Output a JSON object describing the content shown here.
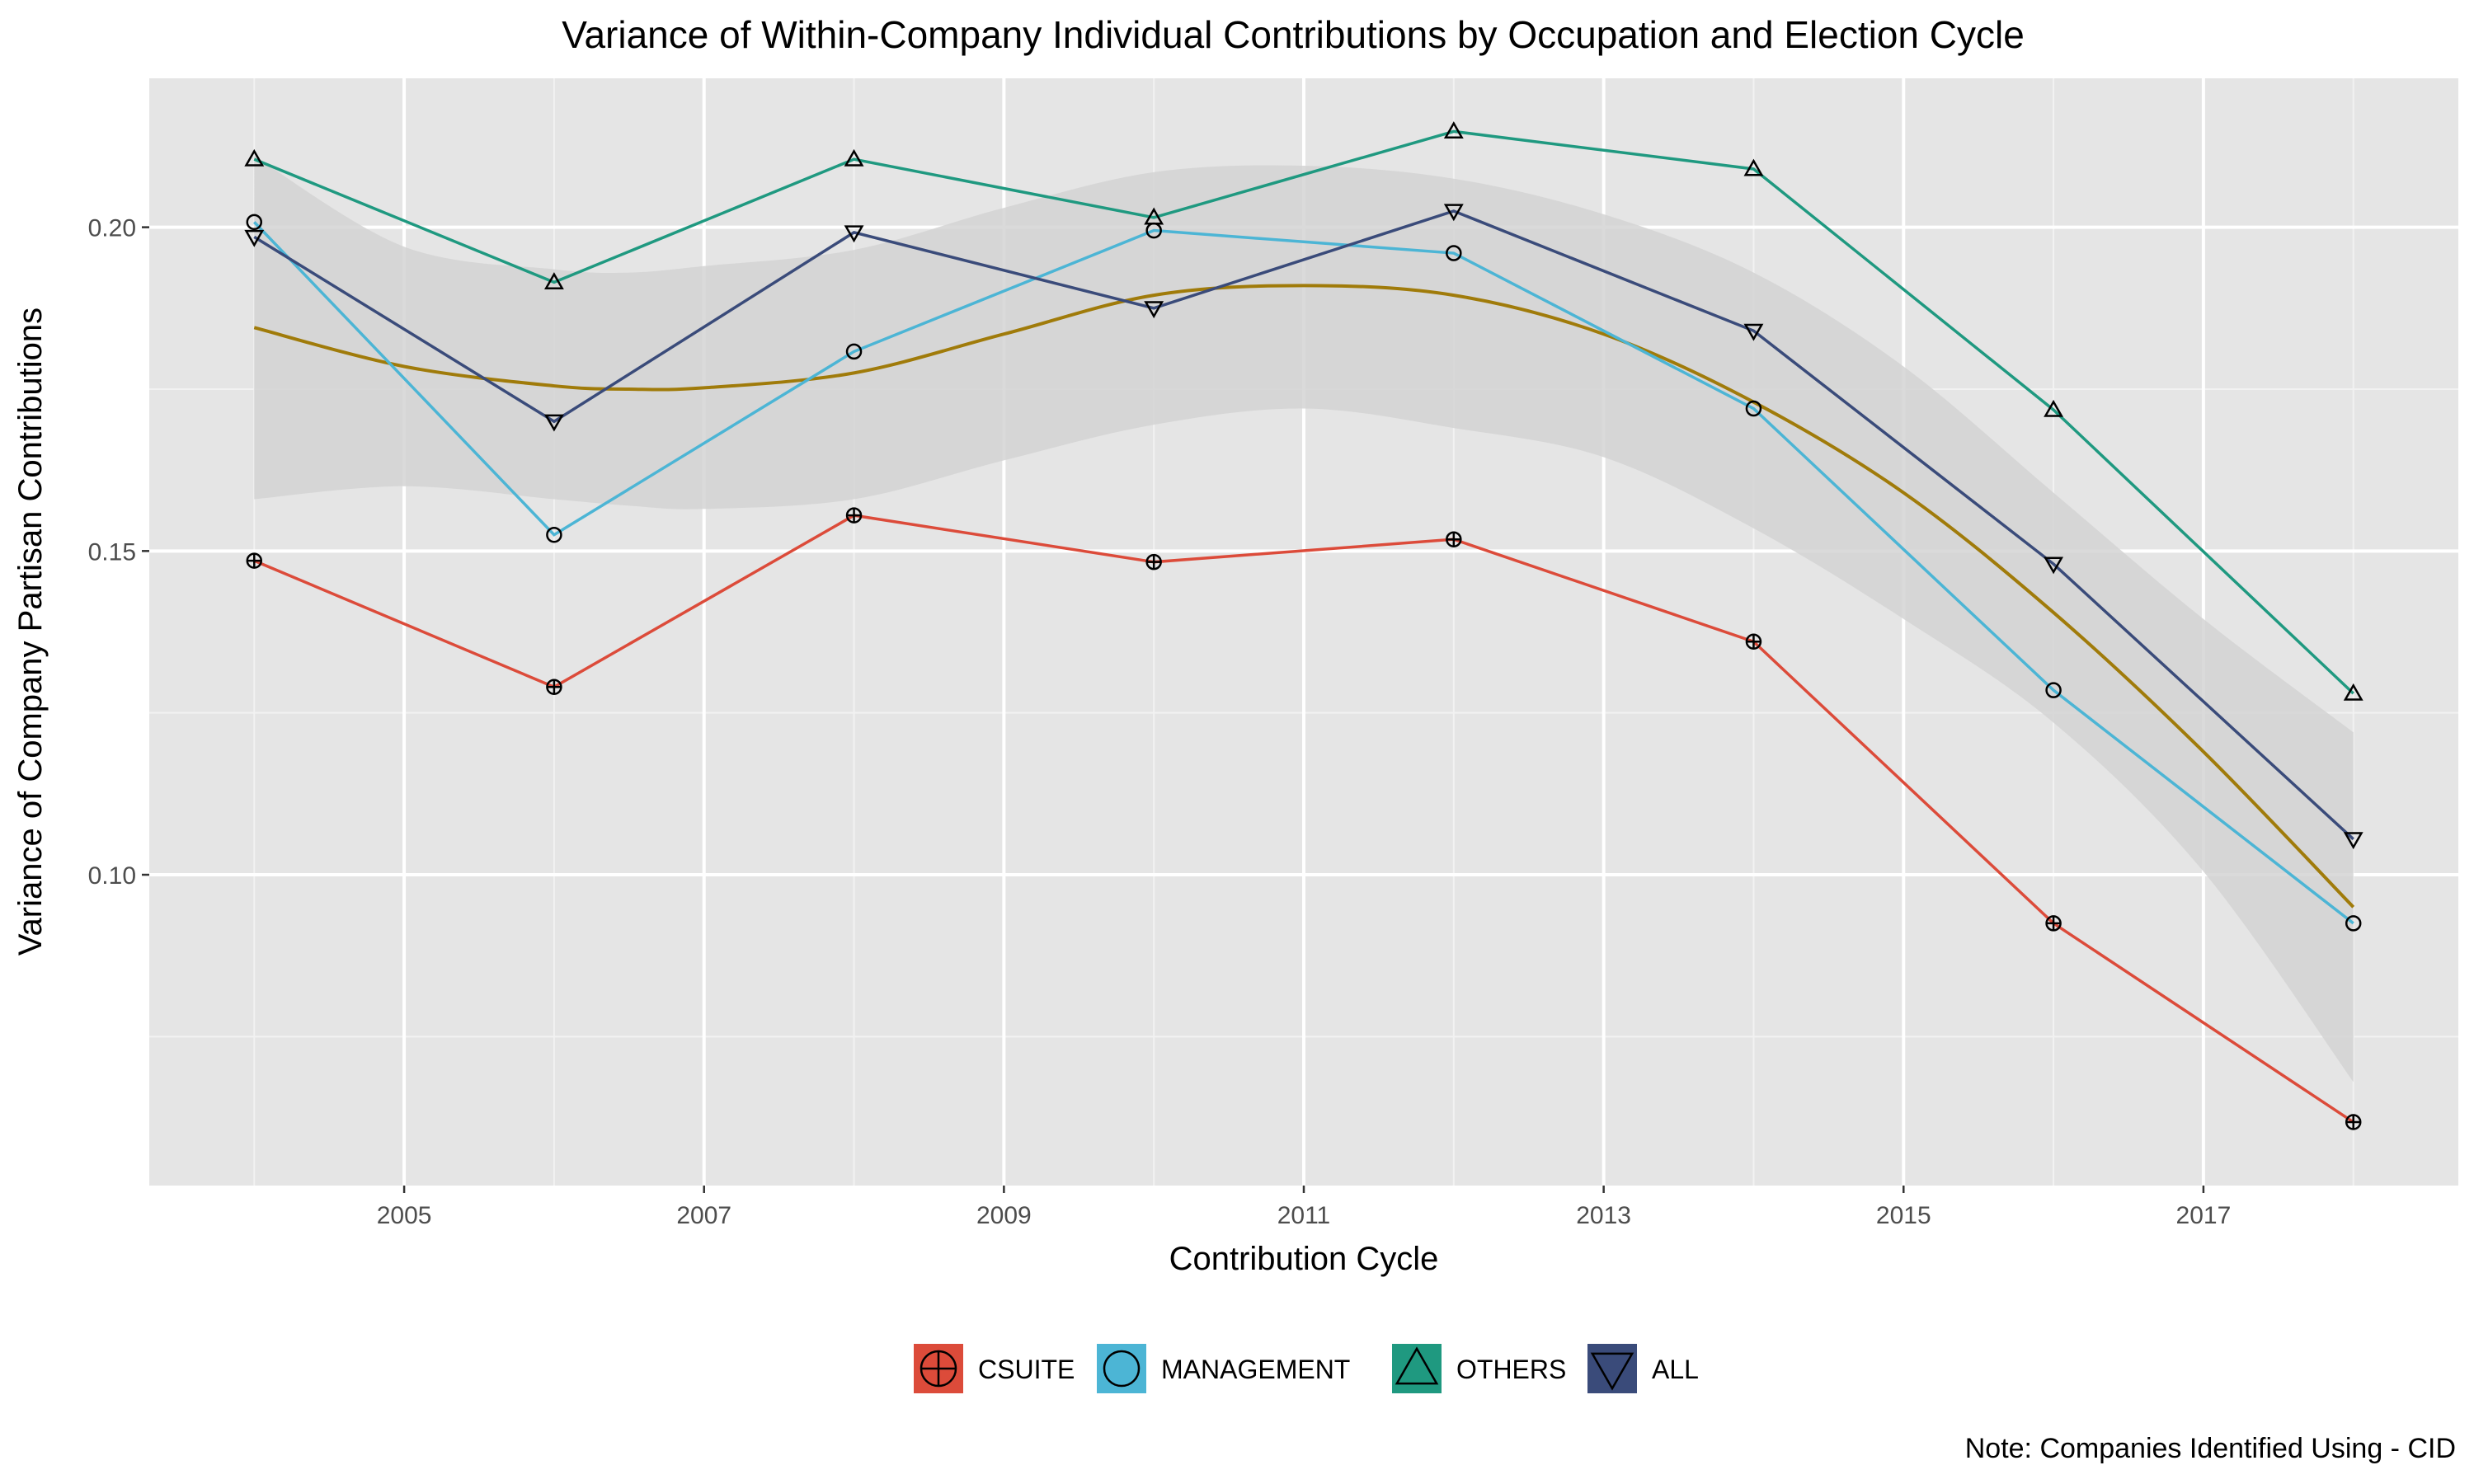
{
  "chart_data": {
    "type": "line",
    "title": "Variance of Within-Company Individual Contributions by Occupation and Election Cycle",
    "xlabel": "Contribution Cycle",
    "ylabel": "Variance of Company Partisan Contributions",
    "caption": "Note: Companies Identified Using - CID",
    "xlim": [
      2003.3,
      2018.7
    ],
    "ylim": [
      0.052,
      0.223
    ],
    "x_ticks": [
      2005,
      2007,
      2009,
      2011,
      2013,
      2015,
      2017
    ],
    "x_tick_labels": [
      "2005",
      "2007",
      "2009",
      "2011",
      "2013",
      "2015",
      "2017"
    ],
    "x_minor_ticks": [
      2004,
      2006,
      2008,
      2010,
      2012,
      2014,
      2016,
      2018
    ],
    "y_ticks": [
      0.1,
      0.15,
      0.2
    ],
    "y_tick_labels": [
      "0.10",
      "0.15",
      "0.20"
    ],
    "y_minor_ticks": [
      0.075,
      0.125,
      0.175
    ],
    "grid": true,
    "legend_position": "bottom",
    "x": [
      2004,
      2006,
      2008,
      2010,
      2012,
      2014,
      2016,
      2018
    ],
    "series": [
      {
        "name": "CSUITE",
        "color": "#dc4b3a",
        "shape": "circle-plus",
        "values": [
          0.1485,
          0.129,
          0.1555,
          0.1483,
          0.1518,
          0.136,
          0.0925,
          0.0618
        ]
      },
      {
        "name": "MANAGEMENT",
        "color": "#4cb5d5",
        "shape": "circle",
        "values": [
          0.2008,
          0.1525,
          0.1808,
          0.1995,
          0.196,
          0.172,
          0.1285,
          0.0925
        ]
      },
      {
        "name": "OTHERS",
        "color": "#1f9980",
        "shape": "triangle-up",
        "values": [
          0.2105,
          0.1915,
          0.2105,
          0.2015,
          0.2148,
          0.209,
          0.1718,
          0.128
        ]
      },
      {
        "name": "ALL",
        "color": "#3a4b7a",
        "shape": "triangle-down",
        "values": [
          0.1985,
          0.17,
          0.1992,
          0.1875,
          0.2025,
          0.184,
          0.148,
          0.1055
        ]
      }
    ],
    "smooth": {
      "color": "#a07b0a",
      "band_color": "#d3d3d3",
      "x": [
        2004,
        2005,
        2006,
        2006.5,
        2007,
        2008,
        2009,
        2010,
        2011,
        2012,
        2013,
        2014,
        2015,
        2016,
        2017,
        2018
      ],
      "y": [
        0.1845,
        0.1785,
        0.1755,
        0.175,
        0.1752,
        0.1775,
        0.1835,
        0.1895,
        0.191,
        0.1895,
        0.1835,
        0.173,
        0.159,
        0.1405,
        0.119,
        0.095
      ],
      "upper": [
        0.211,
        0.197,
        0.1935,
        0.193,
        0.194,
        0.1965,
        0.203,
        0.2085,
        0.2095,
        0.2075,
        0.202,
        0.193,
        0.1785,
        0.159,
        0.1395,
        0.122
      ],
      "lower": [
        0.158,
        0.16,
        0.158,
        0.157,
        0.1565,
        0.158,
        0.164,
        0.1695,
        0.172,
        0.169,
        0.1645,
        0.1535,
        0.1395,
        0.1235,
        0.1005,
        0.068
      ]
    }
  }
}
